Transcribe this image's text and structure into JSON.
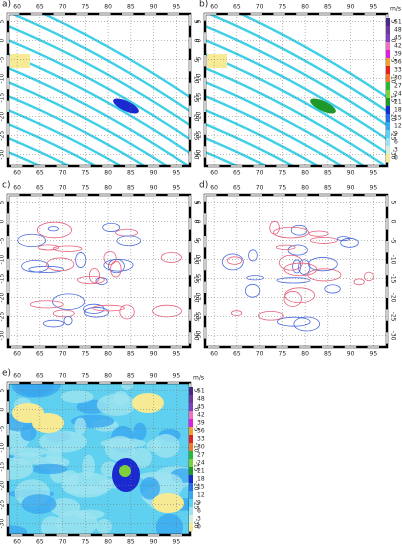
{
  "panels": [
    {
      "label": "a)"
    },
    {
      "label": "b)"
    },
    {
      "label": "c)"
    },
    {
      "label": "d)"
    },
    {
      "label": "e)"
    }
  ],
  "x_tick_labels": [
    60,
    65,
    70,
    75,
    80,
    85,
    90,
    95
  ],
  "y_tick_labels": [
    5,
    0,
    -5,
    -10,
    -15,
    -20,
    -25,
    -30
  ],
  "colorbar": {
    "unit": "m/s",
    "levels": [
      0,
      3,
      6,
      9,
      12,
      15,
      18,
      21,
      24,
      27,
      30,
      33,
      36,
      39,
      42,
      45,
      48,
      51
    ],
    "colors": [
      "#f6ea94",
      "#d6f0e0",
      "#9ee4f0",
      "#5fd0ef",
      "#39a8f0",
      "#2470e8",
      "#1a2ad0",
      "#1f9a2a",
      "#7fd13a",
      "#28b83c",
      "#f07a2a",
      "#e42020",
      "#f0a030",
      "#e020e0",
      "#f070c0",
      "#8040c0",
      "#6a3aa0",
      "#4a2a80"
    ]
  }
}
